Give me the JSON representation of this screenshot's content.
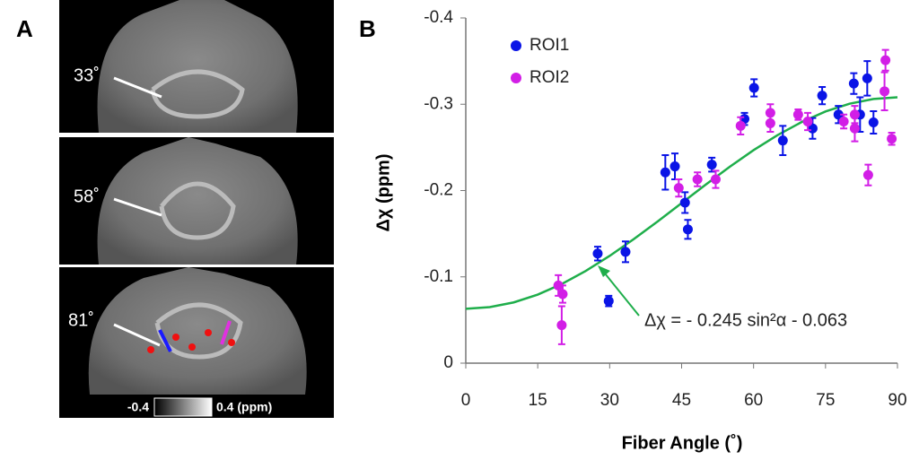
{
  "panel_a": {
    "label": "A",
    "angles": [
      "33˚",
      "58˚",
      "81˚"
    ],
    "colorbar": {
      "min_label": "-0.4",
      "max_label": "0.4 (ppm)"
    }
  },
  "chart_data": {
    "type": "scatter",
    "panel_label": "B",
    "x_label": "Fiber Angle (˚)",
    "y_label": "Δχ (ppm)",
    "xlim": [
      0,
      90
    ],
    "xticks": [
      0,
      15,
      30,
      45,
      60,
      75,
      90
    ],
    "ylim": [
      0,
      -0.4
    ],
    "yticks": [
      -0.4,
      -0.3,
      -0.2,
      -0.1,
      0
    ],
    "legend": "upper-left",
    "series": [
      {
        "name": "ROI1",
        "color": "#0a14e6",
        "x": [
          27.5,
          29.8,
          33.3,
          41.6,
          43.6,
          45.7,
          46.3,
          51.3,
          58.1,
          60.1,
          66.1,
          72.3,
          74.3,
          77.7,
          80.9,
          82.2,
          83.7,
          85.0
        ],
        "values": [
          -0.127,
          -0.072,
          -0.129,
          -0.221,
          -0.228,
          -0.186,
          -0.155,
          -0.23,
          -0.283,
          -0.319,
          -0.258,
          -0.272,
          -0.31,
          -0.288,
          -0.324,
          -0.288,
          -0.33,
          -0.279
        ],
        "errors": [
          0.008,
          0.006,
          0.012,
          0.02,
          0.015,
          0.012,
          0.011,
          0.008,
          0.007,
          0.01,
          0.017,
          0.012,
          0.01,
          0.01,
          0.012,
          0.02,
          0.02,
          0.013
        ]
      },
      {
        "name": "ROI2",
        "color": "#d21ee6",
        "x": [
          19.3,
          20.2,
          20.0,
          44.4,
          48.3,
          52.1,
          57.3,
          63.5,
          63.5,
          69.3,
          71.3,
          78.8,
          81.1,
          81.1,
          83.9,
          87.5,
          87.3,
          88.8
        ],
        "values": [
          -0.09,
          -0.08,
          -0.044,
          -0.203,
          -0.213,
          -0.213,
          -0.275,
          -0.29,
          -0.278,
          -0.288,
          -0.28,
          -0.28,
          -0.272,
          -0.288,
          -0.218,
          -0.351,
          -0.315,
          -0.26
        ],
        "errors": [
          0.012,
          0.01,
          0.022,
          0.01,
          0.008,
          0.01,
          0.01,
          0.01,
          0.01,
          0.006,
          0.01,
          0.008,
          0.015,
          0.01,
          0.012,
          0.012,
          0.022,
          0.007
        ]
      }
    ],
    "fit": {
      "color": "#1fae4b",
      "x": [
        0,
        5,
        10,
        15,
        20,
        25,
        30,
        35,
        40,
        45,
        50,
        55,
        60,
        65,
        70,
        75,
        80,
        85,
        90
      ],
      "values": [
        -0.063,
        -0.0649,
        -0.0704,
        -0.0794,
        -0.0917,
        -0.1068,
        -0.1243,
        -0.1436,
        -0.1642,
        -0.1855,
        -0.2068,
        -0.2274,
        -0.2468,
        -0.2642,
        -0.2793,
        -0.2916,
        -0.3006,
        -0.3061,
        -0.308
      ],
      "annotation": "Δχ = - 0.245 sin²α - 0.063"
    }
  }
}
